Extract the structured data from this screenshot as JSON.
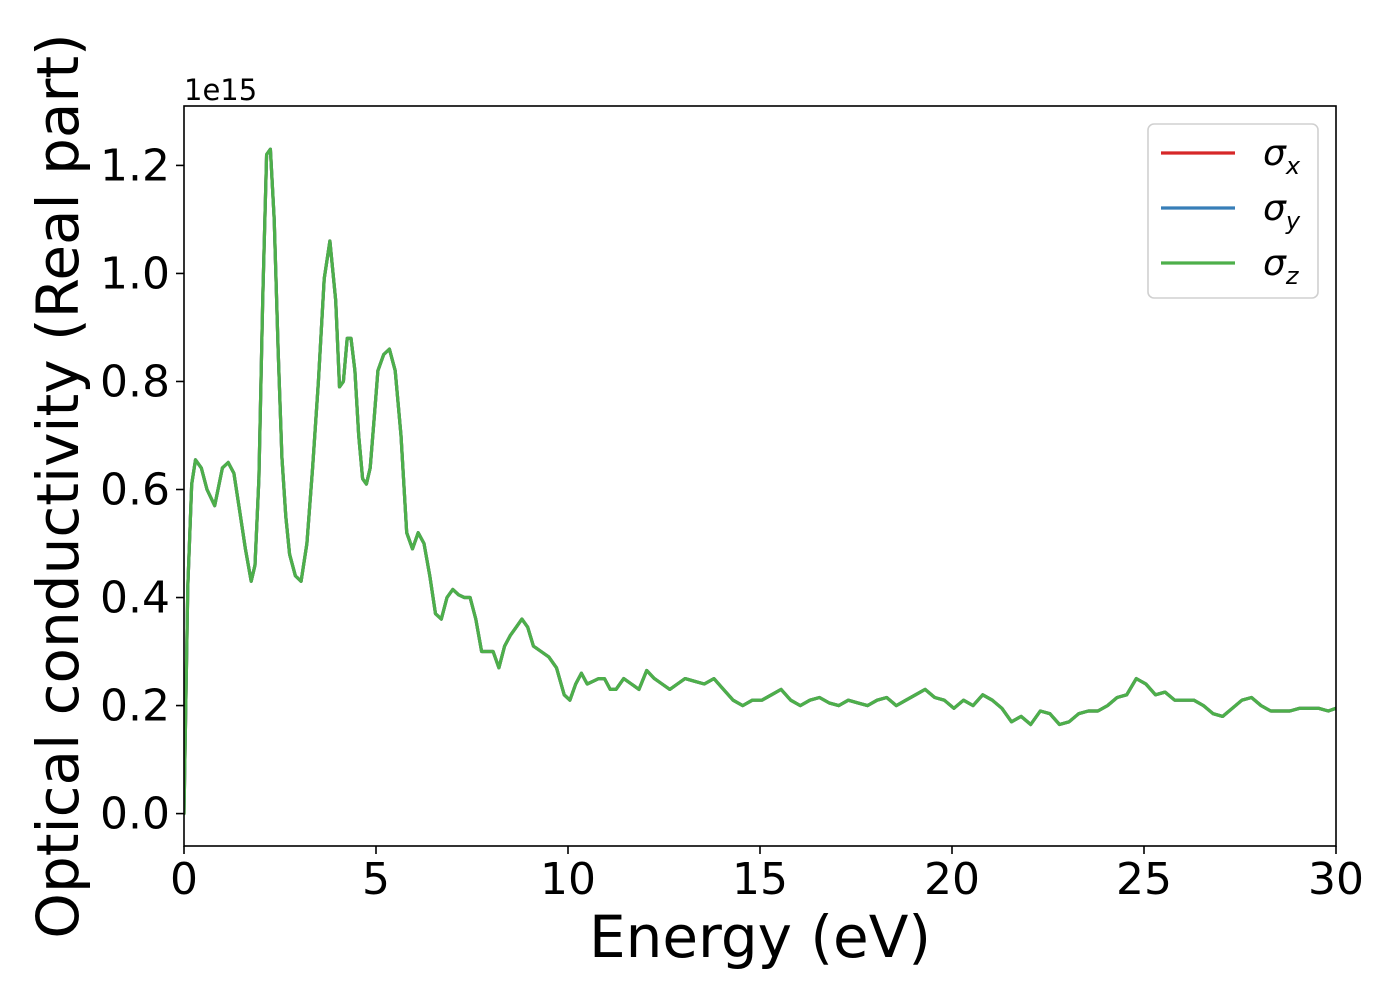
{
  "chart_data": {
    "type": "line",
    "xlabel": "Energy (eV)",
    "ylabel": "Optical conductivity (Real part)",
    "y_offset_text": "1e15",
    "y_scale": 1000000000000000.0,
    "xlim": [
      0,
      30
    ],
    "ylim": [
      -0.06,
      1.31
    ],
    "x_ticks": [
      0,
      5,
      10,
      15,
      20,
      25,
      30
    ],
    "x_tick_labels": [
      "0",
      "5",
      "10",
      "15",
      "20",
      "25",
      "30"
    ],
    "y_ticks": [
      0.0,
      0.2,
      0.4,
      0.6,
      0.8,
      1.0,
      1.2
    ],
    "y_tick_labels": [
      "0.0",
      "0.2",
      "0.4",
      "0.6",
      "0.8",
      "1.0",
      "1.2"
    ],
    "grid": false,
    "legend_position": "top-right",
    "legend": [
      {
        "symbol": "σ",
        "sub": "x",
        "color": "#d62728"
      },
      {
        "symbol": "σ",
        "sub": "y",
        "color": "#377eb8"
      },
      {
        "symbol": "σ",
        "sub": "z",
        "color": "#4daf4a"
      }
    ],
    "x": [
      0.0,
      0.1,
      0.2,
      0.3,
      0.45,
      0.6,
      0.8,
      1.0,
      1.15,
      1.3,
      1.45,
      1.6,
      1.75,
      1.85,
      1.95,
      2.05,
      2.15,
      2.25,
      2.35,
      2.45,
      2.55,
      2.65,
      2.75,
      2.9,
      3.05,
      3.2,
      3.35,
      3.5,
      3.65,
      3.8,
      3.95,
      4.05,
      4.15,
      4.25,
      4.35,
      4.45,
      4.55,
      4.65,
      4.75,
      4.85,
      4.95,
      5.05,
      5.2,
      5.35,
      5.5,
      5.65,
      5.8,
      5.95,
      6.1,
      6.25,
      6.4,
      6.55,
      6.7,
      6.85,
      7.0,
      7.15,
      7.3,
      7.45,
      7.6,
      7.75,
      7.9,
      8.05,
      8.2,
      8.35,
      8.5,
      8.65,
      8.8,
      8.95,
      9.1,
      9.3,
      9.5,
      9.7,
      9.9,
      10.05,
      10.2,
      10.35,
      10.5,
      10.65,
      10.8,
      10.95,
      11.1,
      11.25,
      11.45,
      11.65,
      11.85,
      12.05,
      12.25,
      12.45,
      12.65,
      12.85,
      13.05,
      13.3,
      13.55,
      13.8,
      14.05,
      14.3,
      14.55,
      14.8,
      15.05,
      15.3,
      15.55,
      15.8,
      16.05,
      16.3,
      16.55,
      16.8,
      17.05,
      17.3,
      17.55,
      17.8,
      18.05,
      18.3,
      18.55,
      18.8,
      19.05,
      19.3,
      19.55,
      19.8,
      20.05,
      20.3,
      20.55,
      20.8,
      21.05,
      21.3,
      21.55,
      21.8,
      22.05,
      22.3,
      22.55,
      22.8,
      23.05,
      23.3,
      23.55,
      23.8,
      24.05,
      24.3,
      24.55,
      24.8,
      25.05,
      25.3,
      25.55,
      25.8,
      26.05,
      26.3,
      26.55,
      26.8,
      27.05,
      27.3,
      27.55,
      27.8,
      28.05,
      28.3,
      28.55,
      28.8,
      29.05,
      29.3,
      29.55,
      29.8,
      30.0
    ],
    "series": [
      {
        "name": "σx",
        "color": "#d62728",
        "values": [
          0.0,
          0.42,
          0.61,
          0.655,
          0.64,
          0.6,
          0.57,
          0.64,
          0.65,
          0.63,
          0.56,
          0.49,
          0.43,
          0.46,
          0.62,
          0.95,
          1.22,
          1.23,
          1.1,
          0.86,
          0.66,
          0.55,
          0.48,
          0.44,
          0.43,
          0.5,
          0.64,
          0.8,
          0.99,
          1.06,
          0.95,
          0.79,
          0.8,
          0.88,
          0.88,
          0.82,
          0.7,
          0.62,
          0.61,
          0.64,
          0.73,
          0.82,
          0.85,
          0.86,
          0.82,
          0.7,
          0.52,
          0.49,
          0.52,
          0.5,
          0.44,
          0.37,
          0.36,
          0.4,
          0.415,
          0.405,
          0.4,
          0.4,
          0.36,
          0.3,
          0.3,
          0.3,
          0.27,
          0.31,
          0.33,
          0.345,
          0.36,
          0.345,
          0.31,
          0.3,
          0.29,
          0.27,
          0.22,
          0.21,
          0.24,
          0.26,
          0.24,
          0.245,
          0.25,
          0.25,
          0.23,
          0.23,
          0.25,
          0.24,
          0.23,
          0.265,
          0.25,
          0.24,
          0.23,
          0.24,
          0.25,
          0.245,
          0.24,
          0.25,
          0.23,
          0.21,
          0.2,
          0.21,
          0.21,
          0.22,
          0.23,
          0.21,
          0.2,
          0.21,
          0.215,
          0.205,
          0.2,
          0.21,
          0.205,
          0.2,
          0.21,
          0.215,
          0.2,
          0.21,
          0.22,
          0.23,
          0.215,
          0.21,
          0.195,
          0.21,
          0.2,
          0.22,
          0.21,
          0.195,
          0.17,
          0.18,
          0.165,
          0.19,
          0.185,
          0.165,
          0.17,
          0.185,
          0.19,
          0.19,
          0.2,
          0.215,
          0.22,
          0.25,
          0.24,
          0.22,
          0.225,
          0.21,
          0.21,
          0.21,
          0.2,
          0.185,
          0.18,
          0.195,
          0.21,
          0.215,
          0.2,
          0.19,
          0.19,
          0.19,
          0.195,
          0.195,
          0.195,
          0.19,
          0.195
        ]
      },
      {
        "name": "σy",
        "color": "#377eb8",
        "values": [
          0.0,
          0.42,
          0.61,
          0.655,
          0.64,
          0.6,
          0.57,
          0.64,
          0.65,
          0.63,
          0.56,
          0.49,
          0.43,
          0.46,
          0.62,
          0.95,
          1.22,
          1.23,
          1.1,
          0.86,
          0.66,
          0.55,
          0.48,
          0.44,
          0.43,
          0.5,
          0.64,
          0.8,
          0.99,
          1.06,
          0.95,
          0.79,
          0.8,
          0.88,
          0.88,
          0.82,
          0.7,
          0.62,
          0.61,
          0.64,
          0.73,
          0.82,
          0.85,
          0.86,
          0.82,
          0.7,
          0.52,
          0.49,
          0.52,
          0.5,
          0.44,
          0.37,
          0.36,
          0.4,
          0.415,
          0.405,
          0.4,
          0.4,
          0.36,
          0.3,
          0.3,
          0.3,
          0.27,
          0.31,
          0.33,
          0.345,
          0.36,
          0.345,
          0.31,
          0.3,
          0.29,
          0.27,
          0.22,
          0.21,
          0.24,
          0.26,
          0.24,
          0.245,
          0.25,
          0.25,
          0.23,
          0.23,
          0.25,
          0.24,
          0.23,
          0.265,
          0.25,
          0.24,
          0.23,
          0.24,
          0.25,
          0.245,
          0.24,
          0.25,
          0.23,
          0.21,
          0.2,
          0.21,
          0.21,
          0.22,
          0.23,
          0.21,
          0.2,
          0.21,
          0.215,
          0.205,
          0.2,
          0.21,
          0.205,
          0.2,
          0.21,
          0.215,
          0.2,
          0.21,
          0.22,
          0.23,
          0.215,
          0.21,
          0.195,
          0.21,
          0.2,
          0.22,
          0.21,
          0.195,
          0.17,
          0.18,
          0.165,
          0.19,
          0.185,
          0.165,
          0.17,
          0.185,
          0.19,
          0.19,
          0.2,
          0.215,
          0.22,
          0.25,
          0.24,
          0.22,
          0.225,
          0.21,
          0.21,
          0.21,
          0.2,
          0.185,
          0.18,
          0.195,
          0.21,
          0.215,
          0.2,
          0.19,
          0.19,
          0.19,
          0.195,
          0.195,
          0.195,
          0.19,
          0.195
        ]
      },
      {
        "name": "σz",
        "color": "#4daf4a",
        "values": [
          0.0,
          0.42,
          0.61,
          0.655,
          0.64,
          0.6,
          0.57,
          0.64,
          0.65,
          0.63,
          0.56,
          0.49,
          0.43,
          0.46,
          0.62,
          0.95,
          1.22,
          1.23,
          1.1,
          0.86,
          0.66,
          0.55,
          0.48,
          0.44,
          0.43,
          0.5,
          0.64,
          0.8,
          0.99,
          1.06,
          0.95,
          0.79,
          0.8,
          0.88,
          0.88,
          0.82,
          0.7,
          0.62,
          0.61,
          0.64,
          0.73,
          0.82,
          0.85,
          0.86,
          0.82,
          0.7,
          0.52,
          0.49,
          0.52,
          0.5,
          0.44,
          0.37,
          0.36,
          0.4,
          0.415,
          0.405,
          0.4,
          0.4,
          0.36,
          0.3,
          0.3,
          0.3,
          0.27,
          0.31,
          0.33,
          0.345,
          0.36,
          0.345,
          0.31,
          0.3,
          0.29,
          0.27,
          0.22,
          0.21,
          0.24,
          0.26,
          0.24,
          0.245,
          0.25,
          0.25,
          0.23,
          0.23,
          0.25,
          0.24,
          0.23,
          0.265,
          0.25,
          0.24,
          0.23,
          0.24,
          0.25,
          0.245,
          0.24,
          0.25,
          0.23,
          0.21,
          0.2,
          0.21,
          0.21,
          0.22,
          0.23,
          0.21,
          0.2,
          0.21,
          0.215,
          0.205,
          0.2,
          0.21,
          0.205,
          0.2,
          0.21,
          0.215,
          0.2,
          0.21,
          0.22,
          0.23,
          0.215,
          0.21,
          0.195,
          0.21,
          0.2,
          0.22,
          0.21,
          0.195,
          0.17,
          0.18,
          0.165,
          0.19,
          0.185,
          0.165,
          0.17,
          0.185,
          0.19,
          0.19,
          0.2,
          0.215,
          0.22,
          0.25,
          0.24,
          0.22,
          0.225,
          0.21,
          0.21,
          0.21,
          0.2,
          0.185,
          0.18,
          0.195,
          0.21,
          0.215,
          0.2,
          0.19,
          0.19,
          0.19,
          0.195,
          0.195,
          0.195,
          0.19,
          0.195
        ]
      }
    ]
  }
}
